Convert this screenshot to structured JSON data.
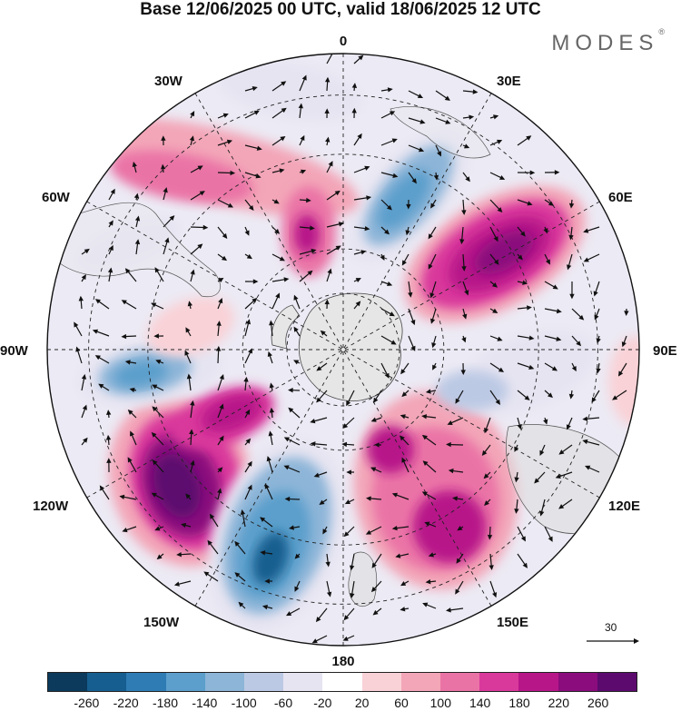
{
  "title": "Base 12/06/2025 00 UTC, valid 18/06/2025 12 UTC",
  "brand": "MODES",
  "brand_mark": "®",
  "map": {
    "projection": "south-polar-stereographic",
    "longitude_labels": {
      "top": "0",
      "bottom": "180",
      "left": "90W",
      "right": "90E",
      "tl1": "30W",
      "tl2": "60W",
      "tr1": "30E",
      "tr2": "60E",
      "bl1": "120W",
      "bl2": "150W",
      "br1": "120E",
      "br2": "150E"
    },
    "anomaly_centers": [
      {
        "sign": "+",
        "lon_label": "130W",
        "level": 260
      },
      {
        "sign": "-",
        "lon_label": "160W",
        "level": -260
      },
      {
        "sign": "+",
        "lon_label": "50E",
        "level": 220
      },
      {
        "sign": "-",
        "lon_label": "20E",
        "level": -180
      },
      {
        "sign": "+",
        "lon_label": "160E",
        "level": 180
      },
      {
        "sign": "-",
        "lon_label": "90W",
        "level": -180
      },
      {
        "sign": "-",
        "lon_label": "100E",
        "level": -100
      },
      {
        "sign": "+",
        "lon_label": "30W",
        "level": 100
      }
    ]
  },
  "vector_reference": {
    "value": "30"
  },
  "colorbar": {
    "colors": [
      "#0b3a5c",
      "#155e8f",
      "#2f7cb5",
      "#5c9fcc",
      "#8db5d8",
      "#bcc9e4",
      "#e6e4f1",
      "#ffffff",
      "#f9d2d7",
      "#f3a6b8",
      "#ea73a6",
      "#d9399b",
      "#b71689",
      "#8a0c7d",
      "#5c0a6e"
    ],
    "tick_labels": [
      "-260",
      "-220",
      "-180",
      "-140",
      "-100",
      "-60",
      "-20",
      "20",
      "60",
      "100",
      "140",
      "180",
      "220",
      "260"
    ],
    "accent_positive": "#b71689",
    "accent_negative": "#155e8f"
  }
}
